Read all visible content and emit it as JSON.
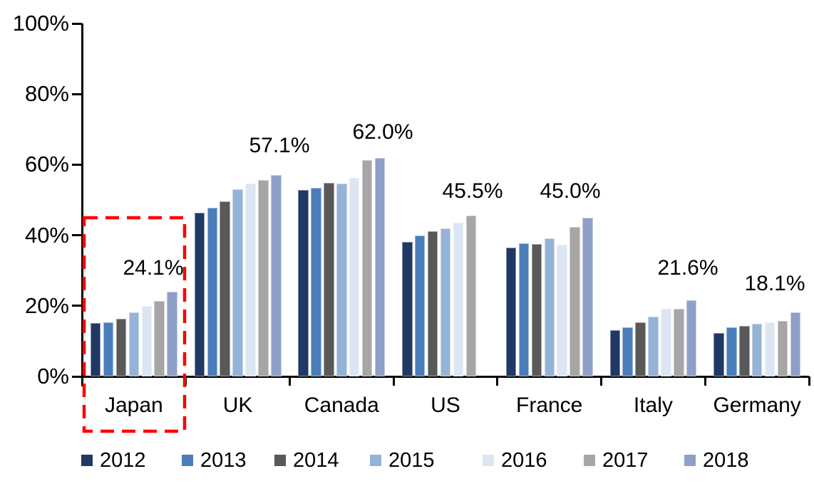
{
  "background": "#FFFFFF",
  "axis_color": "#000000",
  "chart_data": {
    "type": "bar",
    "title": "",
    "xlabel": "",
    "ylabel": "",
    "ylim": [
      0,
      100
    ],
    "grid": false,
    "legend_position": "bottom",
    "categories": [
      "Japan",
      "UK",
      "Canada",
      "US",
      "France",
      "Italy",
      "Germany"
    ],
    "ytick_labels": [
      "0%",
      "20%",
      "40%",
      "60%",
      "80%",
      "100%"
    ],
    "series": [
      {
        "name": "2012",
        "color": "#1F3864",
        "values": [
          15.1,
          46.3,
          52.9,
          38.2,
          36.6,
          13.2,
          12.3
        ]
      },
      {
        "name": "2013",
        "color": "#4A7EBB",
        "values": [
          15.3,
          47.7,
          53.4,
          39.9,
          37.7,
          14.0,
          13.9
        ]
      },
      {
        "name": "2014",
        "color": "#595959",
        "values": [
          16.3,
          49.7,
          54.9,
          41.2,
          37.6,
          15.4,
          14.3
        ]
      },
      {
        "name": "2015",
        "color": "#95B3D7",
        "values": [
          18.2,
          53.1,
          54.7,
          41.9,
          39.2,
          17.0,
          14.9
        ]
      },
      {
        "name": "2016",
        "color": "#DCE6F2",
        "values": [
          20.0,
          54.7,
          56.3,
          43.5,
          37.3,
          19.1,
          15.4
        ]
      },
      {
        "name": "2017",
        "color": "#A6A6A6",
        "values": [
          21.3,
          55.7,
          61.4,
          45.5,
          42.3,
          19.2,
          15.8
        ]
      },
      {
        "name": "2018",
        "color": "#8FA0C8",
        "values": [
          24.1,
          57.1,
          62.0,
          null,
          45.0,
          21.6,
          18.1
        ]
      }
    ],
    "annotations": [
      {
        "category": "Japan",
        "text": "24.1%"
      },
      {
        "category": "UK",
        "text": "57.1%"
      },
      {
        "category": "Canada",
        "text": "62.0%"
      },
      {
        "category": "US",
        "text": "45.5%"
      },
      {
        "category": "France",
        "text": "45.0%"
      },
      {
        "category": "Italy",
        "text": "21.6%"
      },
      {
        "category": "Germany",
        "text": "18.1%"
      }
    ],
    "highlight_box": {
      "category": "Japan",
      "color": "#FF0000",
      "style": "dashed"
    }
  }
}
